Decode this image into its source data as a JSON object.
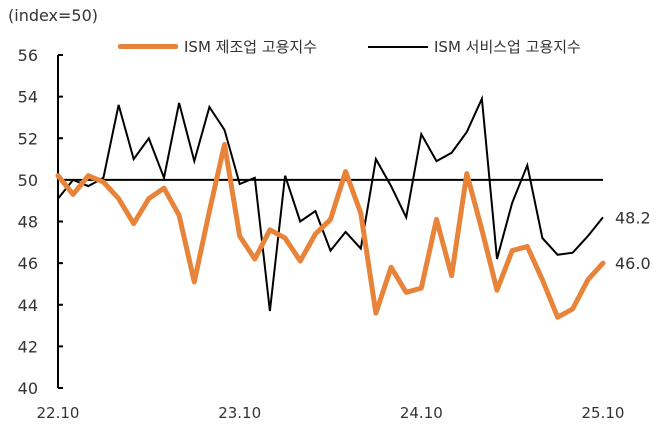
{
  "chart": {
    "unit_label": "(index=50)",
    "legend": [
      {
        "label": "ISM 제조업 고용지수",
        "color": "#e8833a"
      },
      {
        "label": "ISM 서비스업 고용지수",
        "color": "#000000"
      }
    ],
    "end_labels": {
      "services": "48.2",
      "manufacturing": "46.0"
    }
  },
  "chart_data": {
    "type": "line",
    "title": "",
    "xlabel": "",
    "ylabel": "(index=50)",
    "ylim": [
      40,
      56
    ],
    "yticks": [
      40,
      42,
      44,
      46,
      48,
      50,
      52,
      54,
      56
    ],
    "xtick_labels": [
      "22.10",
      "23.10",
      "24.10",
      "25.10"
    ],
    "xtick_indices": [
      0,
      12,
      24,
      36
    ],
    "reference_line": 50,
    "grid": false,
    "legend_position": "top",
    "x": [
      "22.10",
      "22.11",
      "22.12",
      "23.01",
      "23.02",
      "23.03",
      "23.04",
      "23.05",
      "23.06",
      "23.07",
      "23.08",
      "23.09",
      "23.10",
      "23.11",
      "23.12",
      "24.01",
      "24.02",
      "24.03",
      "24.04",
      "24.05",
      "24.06",
      "24.07",
      "24.08",
      "24.09",
      "24.10",
      "24.11",
      "24.12",
      "25.01",
      "25.02",
      "25.03",
      "25.04",
      "25.05",
      "25.06",
      "25.07",
      "25.08",
      "25.09",
      "25.10"
    ],
    "series": [
      {
        "name": "ISM 제조업 고용지수",
        "color": "#e8833a",
        "values": [
          50.2,
          49.3,
          50.2,
          49.9,
          49.1,
          47.9,
          49.1,
          49.6,
          48.3,
          45.1,
          48.5,
          51.7,
          47.3,
          46.2,
          47.6,
          47.2,
          46.1,
          47.4,
          48.1,
          50.4,
          48.4,
          43.6,
          45.8,
          44.6,
          44.8,
          48.1,
          45.4,
          50.3,
          47.6,
          44.7,
          46.6,
          46.8,
          45.2,
          43.4,
          43.8,
          45.2,
          46.0
        ]
      },
      {
        "name": "ISM 서비스업 고용지수",
        "color": "#000000",
        "values": [
          49.1,
          50.0,
          49.7,
          50.1,
          53.6,
          51.0,
          52.0,
          50.1,
          53.7,
          50.9,
          53.5,
          52.4,
          49.8,
          50.1,
          43.7,
          50.2,
          48.0,
          48.5,
          46.6,
          47.5,
          46.7,
          51.0,
          49.7,
          48.2,
          52.2,
          50.9,
          51.3,
          52.3,
          53.9,
          46.2,
          48.9,
          50.7,
          47.2,
          46.4,
          46.5,
          47.3,
          48.2
        ]
      }
    ],
    "annotations": [
      {
        "text": "48.2",
        "series": "ISM 서비스업 고용지수",
        "index": 36
      },
      {
        "text": "46.0",
        "series": "ISM 제조업 고용지수",
        "index": 36
      }
    ]
  }
}
